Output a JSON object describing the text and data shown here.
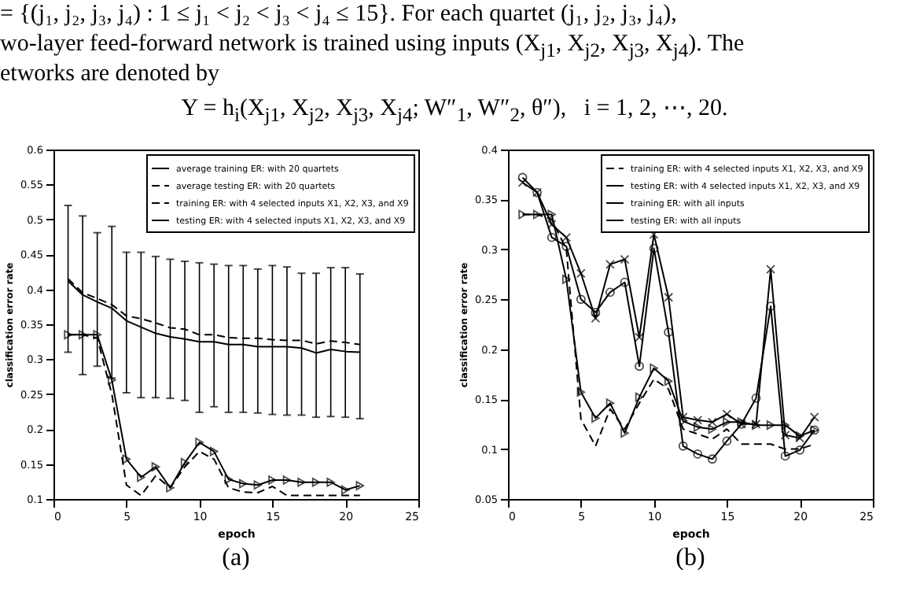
{
  "chart_data": [
    {
      "type": "other",
      "annotations": [
        "= {(j₁, j₂, j₃, j₄) : 1 ≤ j₁ < j₂ < j₃ < j₄ ≤ 15}. For each quartet (j₁, j₂, j₃, j₄),",
        "wo-layer feed-forward network is trained using inputs (X$_{j1}$, X$_{j2}$, X$_{j3}$, X$_{j4}$). The",
        "etworks are denoted by",
        "Y = h$_{i}$(X$_{j1}$, X$_{j2}$, X$_{j3}$, X$_{j4}$; W″$_{1}$, W″$_{2}$, θ″),   i = 1, 2, ⋯, 20."
      ]
    },
    {
      "type": "line",
      "xlabel": "epoch",
      "ylabel": "classification error rate",
      "annotations": [
        "(a)"
      ],
      "legend": "top right",
      "xlim": [
        0,
        25
      ],
      "xticks": [
        0,
        5,
        10,
        15,
        20,
        25
      ],
      "ylim": [
        0.1,
        0.6
      ],
      "yticks": [
        0.1,
        0.15,
        0.2,
        0.25,
        0.3,
        0.35,
        0.4,
        0.45,
        0.5,
        0.55,
        0.6
      ],
      "x": [
        1,
        2,
        3,
        4,
        5,
        6,
        7,
        8,
        9,
        10,
        11,
        12,
        13,
        14,
        15,
        16,
        17,
        18,
        19,
        20,
        21
      ],
      "series": [
        {
          "name": "average training ER: with 20 quartets",
          "color": "#000000",
          "line_style": "solid",
          "marker": "none",
          "values": [
            0.412,
            0.392,
            0.382,
            0.373,
            0.355,
            0.346,
            0.337,
            0.332,
            0.329,
            0.325,
            0.325,
            0.321,
            0.321,
            0.318,
            0.318,
            0.318,
            0.316,
            0.309,
            0.314,
            0.311,
            0.31
          ],
          "errors": [
            [
              0.31,
              0.52
            ],
            [
              0.278,
              0.505
            ],
            [
              0.29,
              0.481
            ],
            [
              0.273,
              0.49
            ],
            [
              0.252,
              0.453
            ],
            [
              0.245,
              0.453
            ],
            [
              0.245,
              0.447
            ],
            [
              0.244,
              0.443
            ],
            [
              0.241,
              0.44
            ],
            [
              0.224,
              0.438
            ],
            [
              0.232,
              0.436
            ],
            [
              0.224,
              0.434
            ],
            [
              0.224,
              0.434
            ],
            [
              0.223,
              0.429
            ],
            [
              0.221,
              0.434
            ],
            [
              0.22,
              0.432
            ],
            [
              0.22,
              0.423
            ],
            [
              0.217,
              0.423
            ],
            [
              0.218,
              0.431
            ],
            [
              0.217,
              0.431
            ],
            [
              0.215,
              0.422
            ]
          ]
        },
        {
          "name": "average testing ER: with 20 quartets",
          "color": "#000000",
          "line_style": "dashed",
          "marker": "none",
          "values": [
            0.415,
            0.395,
            0.387,
            0.378,
            0.362,
            0.358,
            0.352,
            0.345,
            0.343,
            0.335,
            0.335,
            0.331,
            0.33,
            0.33,
            0.328,
            0.327,
            0.327,
            0.322,
            0.326,
            0.324,
            0.321
          ]
        },
        {
          "name": "training ER: with 4 selected inputs X1, X2, X3, and X9",
          "color": "#000000",
          "line_style": "dashed",
          "marker": "none",
          "values": [
            0.335,
            0.335,
            0.33,
            0.25,
            0.12,
            0.105,
            0.133,
            0.116,
            0.146,
            0.168,
            0.157,
            0.116,
            0.11,
            0.109,
            0.118,
            0.105,
            0.105,
            0.105,
            0.105,
            0.105,
            0.105
          ]
        },
        {
          "name": "testing ER: with 4 selected inputs X1, X2, X3, and X9",
          "color": "#000000",
          "line_style": "solid",
          "marker": "triangle",
          "values": [
            0.335,
            0.335,
            0.335,
            0.27,
            0.157,
            0.131,
            0.146,
            0.116,
            0.152,
            0.181,
            0.168,
            0.128,
            0.122,
            0.12,
            0.127,
            0.127,
            0.124,
            0.124,
            0.124,
            0.113,
            0.119
          ]
        }
      ]
    },
    {
      "type": "line",
      "xlabel": "epoch",
      "ylabel": "classification error rate",
      "annotations": [
        "(b)"
      ],
      "legend": "top right",
      "xlim": [
        0,
        25
      ],
      "xticks": [
        0,
        5,
        10,
        15,
        20,
        25
      ],
      "ylim": [
        0.05,
        0.4
      ],
      "yticks": [
        0.05,
        0.1,
        0.15,
        0.2,
        0.25,
        0.3,
        0.35,
        0.4
      ],
      "x": [
        1,
        2,
        3,
        4,
        5,
        6,
        7,
        8,
        9,
        10,
        11,
        12,
        13,
        14,
        15,
        16,
        17,
        18,
        19,
        20,
        21
      ],
      "series": [
        {
          "name": "training ER: with 4 selected inputs X1, X2, X3, and X9",
          "color": "#000000",
          "line_style": "dashed",
          "marker": "none",
          "values": [
            0.335,
            0.335,
            0.33,
            0.3,
            0.13,
            0.103,
            0.14,
            0.12,
            0.146,
            0.17,
            0.16,
            0.12,
            0.115,
            0.11,
            0.12,
            0.105,
            0.105,
            0.105,
            0.1,
            0.1,
            0.105
          ]
        },
        {
          "name": "testing ER: with 4 selected inputs X1, X2, X3, and X9",
          "color": "#000000",
          "line_style": "solid",
          "marker": "triangle",
          "values": [
            0.335,
            0.335,
            0.335,
            0.27,
            0.157,
            0.131,
            0.146,
            0.116,
            0.152,
            0.181,
            0.168,
            0.128,
            0.122,
            0.12,
            0.127,
            0.127,
            0.124,
            0.124,
            0.124,
            0.113,
            0.119
          ]
        },
        {
          "name": "training ER: with all inputs",
          "color": "#000000",
          "line_style": "solid",
          "marker": "circle",
          "values": [
            0.372,
            0.357,
            0.312,
            0.303,
            0.25,
            0.237,
            0.257,
            0.267,
            0.183,
            0.301,
            0.217,
            0.103,
            0.095,
            0.09,
            0.108,
            0.125,
            0.151,
            0.243,
            0.093,
            0.099,
            0.119
          ]
        },
        {
          "name": "testing ER: with all inputs",
          "color": "#000000",
          "line_style": "solid",
          "marker": "cross",
          "values": [
            0.367,
            0.357,
            0.325,
            0.312,
            0.276,
            0.231,
            0.285,
            0.29,
            0.212,
            0.315,
            0.252,
            0.132,
            0.129,
            0.127,
            0.135,
            0.125,
            0.125,
            0.28,
            0.114,
            0.111,
            0.132
          ]
        }
      ]
    }
  ]
}
